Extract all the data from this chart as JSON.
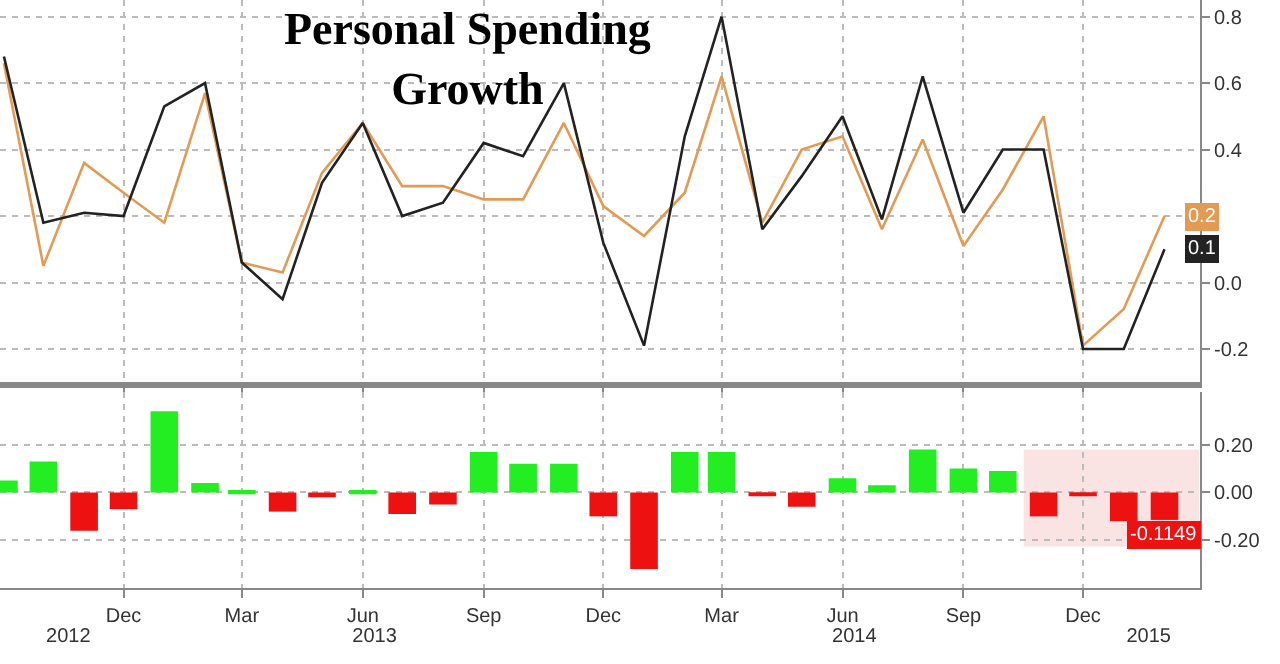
{
  "chart_data": [
    {
      "type": "line",
      "title": "Personal Spending Growth",
      "x": [
        "2012-09",
        "2012-10",
        "2012-11",
        "2012-12",
        "2013-01",
        "2013-02",
        "2013-03",
        "2013-04",
        "2013-05",
        "2013-06",
        "2013-07",
        "2013-08",
        "2013-09",
        "2013-10",
        "2013-11",
        "2013-12",
        "2014-01",
        "2014-02",
        "2014-03",
        "2014-04",
        "2014-05",
        "2014-06",
        "2014-07",
        "2014-08",
        "2014-09",
        "2014-10",
        "2014-11",
        "2014-12",
        "2015-01",
        "2015-02"
      ],
      "series": [
        {
          "color": "#e39a55",
          "values": [
            0.66,
            0.05,
            0.36,
            0.27,
            0.18,
            0.57,
            0.06,
            0.03,
            0.33,
            0.48,
            0.29,
            0.29,
            0.25,
            0.25,
            0.48,
            0.23,
            0.14,
            0.27,
            0.62,
            0.18,
            0.4,
            0.44,
            0.16,
            0.43,
            0.11,
            0.28,
            0.5,
            -0.19,
            -0.08,
            0.2
          ],
          "value_labels": [
            null,
            null,
            null,
            null,
            null,
            null,
            null,
            null,
            null,
            null,
            null,
            null,
            null,
            null,
            null,
            null,
            null,
            null,
            null,
            null,
            null,
            null,
            null,
            null,
            null,
            null,
            null,
            null,
            null,
            "0.2"
          ]
        },
        {
          "color": "#222222",
          "values": [
            0.68,
            0.18,
            0.21,
            0.2,
            0.53,
            0.6,
            0.06,
            -0.05,
            0.3,
            0.48,
            0.2,
            0.24,
            0.42,
            0.38,
            0.6,
            0.12,
            -0.19,
            0.44,
            0.8,
            0.16,
            0.32,
            0.5,
            0.19,
            0.62,
            0.21,
            0.4,
            0.4,
            -0.2,
            -0.2,
            0.1
          ],
          "value_labels": [
            null,
            null,
            null,
            null,
            null,
            null,
            null,
            null,
            null,
            null,
            null,
            null,
            null,
            null,
            null,
            null,
            null,
            null,
            null,
            null,
            null,
            null,
            null,
            null,
            null,
            null,
            null,
            null,
            null,
            "0.1"
          ]
        }
      ],
      "xlim": [
        "2012-08-29",
        "2015-02-28"
      ],
      "xticks": [
        {
          "value": "2012-12",
          "label": null
        },
        {
          "value": "2013-03",
          "label": null
        },
        {
          "value": "2013-06",
          "label": null
        },
        {
          "value": "2013-09",
          "label": null
        },
        {
          "value": "2013-12",
          "label": null
        },
        {
          "value": "2014-03",
          "label": null
        },
        {
          "value": "2014-06",
          "label": null
        },
        {
          "value": "2014-09",
          "label": null
        },
        {
          "value": "2014-12",
          "label": null
        }
      ],
      "ylim": [
        -0.3,
        0.85
      ],
      "yticks": [
        -0.2,
        {
          "value": 0,
          "label": "0.0"
        },
        {
          "value": 0.2,
          "label": null
        },
        0.4,
        0.6,
        0.8
      ],
      "grid": true,
      "tick_labels": "y",
      "marker": "none",
      "line_style": "solid"
    },
    {
      "type": "bar",
      "x": [
        "2012-09",
        "2012-10",
        "2012-11",
        "2012-12",
        "2013-01",
        "2013-02",
        "2013-03",
        "2013-04",
        "2013-05",
        "2013-06",
        "2013-07",
        "2013-08",
        "2013-09",
        "2013-10",
        "2013-11",
        "2013-12",
        "2014-01",
        "2014-02",
        "2014-03",
        "2014-04",
        "2014-05",
        "2014-06",
        "2014-07",
        "2014-08",
        "2014-09",
        "2014-10",
        "2014-11",
        "2014-12",
        "2015-01",
        "2015-02"
      ],
      "values": [
        0.05,
        0.13,
        -0.16,
        -0.07,
        0.34,
        0.04,
        0.01,
        -0.08,
        -0.02,
        0.01,
        -0.09,
        -0.05,
        0.17,
        0.12,
        0.12,
        -0.1,
        -0.32,
        0.17,
        0.17,
        -0.01,
        -0.06,
        0.06,
        0.03,
        0.18,
        0.1,
        0.09,
        -0.1,
        -0.01,
        -0.12,
        -0.1149
      ],
      "colors": [
        "#22ee22",
        "#22ee22",
        "#ee1111",
        "#ee1111",
        "#22ee22",
        "#22ee22",
        "#22ee22",
        "#ee1111",
        "#ee1111",
        "#22ee22",
        "#ee1111",
        "#ee1111",
        "#22ee22",
        "#22ee22",
        "#22ee22",
        "#ee1111",
        "#ee1111",
        "#22ee22",
        "#22ee22",
        "#ee1111",
        "#ee1111",
        "#22ee22",
        "#22ee22",
        "#22ee22",
        "#22ee22",
        "#22ee22",
        "#ee1111",
        "#ee1111",
        "#ee1111",
        "#ee1111"
      ],
      "value_labels": [
        null,
        null,
        null,
        null,
        null,
        null,
        null,
        null,
        null,
        null,
        null,
        null,
        null,
        null,
        null,
        null,
        null,
        null,
        null,
        null,
        null,
        null,
        null,
        null,
        null,
        null,
        null,
        null,
        null,
        "-0.1149"
      ],
      "xlim": [
        "2012-08-29",
        "2015-02-28"
      ],
      "xticks": [
        {
          "value": "2012-12",
          "label": "Dec"
        },
        {
          "value": "2013-03",
          "label": "Mar"
        },
        {
          "value": "2013-06",
          "label": "Jun"
        },
        {
          "value": "2013-09",
          "label": "Sep"
        },
        {
          "value": "2013-12",
          "label": "Dec"
        },
        {
          "value": "2014-03",
          "label": "Mar"
        },
        {
          "value": "2014-06",
          "label": "Jun"
        },
        {
          "value": "2014-09",
          "label": "Sep"
        },
        {
          "value": "2014-12",
          "label": "Dec"
        }
      ],
      "x2lim": [
        "2012-08-29",
        "2015-02-28"
      ],
      "x2ticks": [
        {
          "value": "2012-10-20",
          "label": "2012"
        },
        {
          "value": "2013-06-10",
          "label": "2013"
        },
        {
          "value": "2014-06-10",
          "label": "2014"
        },
        {
          "value": "2015-01-20",
          "label": "2015"
        }
      ],
      "ylim": [
        -0.4,
        0.42
      ],
      "yticks": [
        {
          "value": 0.2,
          "label": "0.20"
        },
        {
          "value": 0.0,
          "label": "0.00"
        },
        {
          "value": -0.2,
          "label": "-0.20"
        }
      ],
      "grid": true,
      "bands": [
        {
          "axis": "x",
          "from": "2014-10-18",
          "to": "2015-02-26",
          "color": "#dd2222"
        }
      ]
    }
  ]
}
